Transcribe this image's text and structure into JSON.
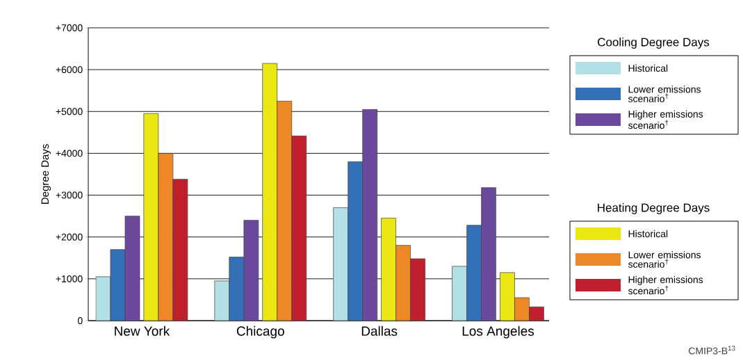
{
  "chart_data": {
    "type": "bar",
    "ylabel": "Degree Days",
    "categories": [
      "New York",
      "Chicago",
      "Dallas",
      "Los Angeles"
    ],
    "series": [
      {
        "name": "Historical",
        "color": "#b2e0e6",
        "values": [
          1050,
          950,
          2700,
          1300
        ]
      },
      {
        "name": "Lower emissions scenario$^{†}$",
        "color": "#3470b8",
        "values": [
          1700,
          1520,
          3800,
          2280
        ]
      },
      {
        "name": "Higher emissions scenario$^{†}$",
        "color": "#6b4a9e",
        "values": [
          2500,
          2400,
          5050,
          3180
        ]
      },
      {
        "name": "Historical",
        "color": "#ebe713",
        "values": [
          4950,
          6150,
          2450,
          1150
        ]
      },
      {
        "name": "Lower emissions scenario$^{†}$",
        "color": "#ec8826",
        "values": [
          4000,
          5250,
          1800,
          550
        ]
      },
      {
        "name": "Higher emissions scenario$^{†}$",
        "color": "#c01f2e",
        "values": [
          3380,
          4420,
          1480,
          330
        ]
      }
    ],
    "ylim": [
      0,
      7000
    ],
    "yticks": [
      0,
      {
        "value": 1000,
        "label": "+1000"
      },
      {
        "value": 2000,
        "label": "+2000"
      },
      {
        "value": 3000,
        "label": "+3000"
      },
      {
        "value": 4000,
        "label": "+4000"
      },
      {
        "value": 5000,
        "label": "+5000"
      },
      {
        "value": 6000,
        "label": "+6000"
      },
      {
        "value": 7000,
        "label": "+7000"
      }
    ],
    "grid": "y",
    "legend": "right",
    "annotations": [
      "Cooling Degree Days",
      "Heating Degree Days",
      "CMIP3-B$^{13}$"
    ]
  }
}
